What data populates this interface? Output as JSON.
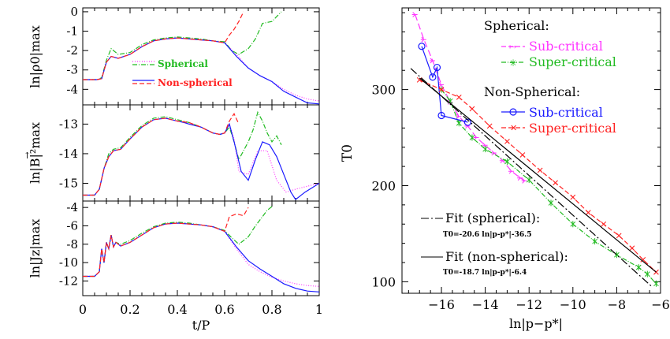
{
  "left_panels": {
    "xlabel": "t/P",
    "x_ticks": [
      "0",
      "0.2",
      "0.4",
      "0.6",
      "0.8",
      "1"
    ],
    "legend": [
      {
        "label": "Spherical",
        "color": "#ff33ff",
        "dash": "dotted",
        "color2": "#22bb22"
      },
      {
        "label": "Non-spherical",
        "color": "#1a1aff",
        "dash": "solid",
        "color2": "#ff2222"
      }
    ]
  },
  "right_panel": {
    "xlabel": "ln|p−p*|",
    "ylabel": "T0",
    "x_ticks": [
      "−16",
      "−14",
      "−12",
      "−10",
      "−8",
      "−6"
    ],
    "y_ticks": [
      "100",
      "200",
      "300"
    ],
    "legend": {
      "group1": "Spherical:",
      "sub1": "Sub-critical",
      "super1": "Super-critical",
      "group2": "Non-Spherical:",
      "sub2": "Sub-critical",
      "super2": "Super-critical",
      "fit1": "Fit (spherical):",
      "fit1_eq": "T0=-20.6  ln|p-p*|-36.5",
      "fit2": "Fit (non-spherical):",
      "fit2_eq": "T0=-18.7  ln|p-p*|-6.4"
    }
  },
  "colors": {
    "magenta": "#ff33ff",
    "green": "#22bb22",
    "blue": "#1a1aff",
    "red": "#ff2222",
    "black": "#000000"
  },
  "chart_data": [
    {
      "type": "line",
      "ylabel": "ln|ρ0|max",
      "xlim": [
        0,
        1
      ],
      "ylim": [
        -4.8,
        0.2
      ],
      "y_ticks": [
        "0",
        "-1",
        "-2",
        "-3",
        "-4"
      ],
      "series": [
        {
          "name": "Spherical",
          "color": "#ff33ff",
          "dash": "1,2",
          "x": [
            0,
            0.06,
            0.08,
            0.1,
            0.12,
            0.15,
            0.2,
            0.25,
            0.3,
            0.35,
            0.4,
            0.45,
            0.5,
            0.55,
            0.6,
            0.65,
            0.7,
            0.75,
            0.8,
            0.85,
            0.9,
            0.95,
            1.0
          ],
          "y": [
            -3.5,
            -3.5,
            -3.45,
            -2.6,
            -2.3,
            -2.4,
            -2.2,
            -1.8,
            -1.5,
            -1.4,
            -1.35,
            -1.4,
            -1.45,
            -1.5,
            -1.6,
            -2.2,
            -2.9,
            -3.3,
            -3.6,
            -4.0,
            -4.3,
            -4.5,
            -4.6
          ]
        },
        {
          "name": "",
          "color": "#22bb22",
          "dash": "6,2,1,2",
          "x": [
            0,
            0.06,
            0.08,
            0.1,
            0.12,
            0.15,
            0.2,
            0.25,
            0.3,
            0.35,
            0.4,
            0.45,
            0.5,
            0.55,
            0.6,
            0.63,
            0.66,
            0.7,
            0.73,
            0.76,
            0.8,
            0.84
          ],
          "y": [
            -3.5,
            -3.5,
            -3.4,
            -2.5,
            -1.9,
            -2.2,
            -2.1,
            -1.7,
            -1.45,
            -1.35,
            -1.3,
            -1.35,
            -1.4,
            -1.5,
            -1.55,
            -2.0,
            -2.2,
            -1.9,
            -1.4,
            -0.6,
            -0.5,
            0.0
          ]
        },
        {
          "name": "Non-spherical",
          "color": "#1a1aff",
          "dash": "",
          "x": [
            0,
            0.06,
            0.08,
            0.1,
            0.12,
            0.15,
            0.2,
            0.25,
            0.3,
            0.35,
            0.4,
            0.45,
            0.5,
            0.55,
            0.6,
            0.65,
            0.7,
            0.75,
            0.8,
            0.85,
            0.9,
            0.95,
            1.0
          ],
          "y": [
            -3.5,
            -3.5,
            -3.45,
            -2.6,
            -2.3,
            -2.4,
            -2.2,
            -1.8,
            -1.5,
            -1.4,
            -1.35,
            -1.4,
            -1.45,
            -1.5,
            -1.6,
            -2.3,
            -2.9,
            -3.3,
            -3.6,
            -4.1,
            -4.4,
            -4.7,
            -4.75
          ]
        },
        {
          "name": "",
          "color": "#ff2222",
          "dash": "6,3",
          "x": [
            0,
            0.06,
            0.08,
            0.1,
            0.12,
            0.15,
            0.2,
            0.25,
            0.3,
            0.35,
            0.4,
            0.45,
            0.5,
            0.55,
            0.6,
            0.62,
            0.64,
            0.66,
            0.68
          ],
          "y": [
            -3.5,
            -3.5,
            -3.45,
            -2.6,
            -2.3,
            -2.4,
            -2.2,
            -1.8,
            -1.5,
            -1.4,
            -1.35,
            -1.4,
            -1.45,
            -1.5,
            -1.6,
            -1.2,
            -0.9,
            -0.5,
            0.0
          ]
        }
      ]
    },
    {
      "type": "line",
      "ylabel": "ln|B|²max",
      "xlim": [
        0,
        1
      ],
      "ylim": [
        -15.6,
        -12.35
      ],
      "y_ticks": [
        "-13",
        "-14",
        "-15"
      ],
      "series": [
        {
          "name": "Spherical",
          "color": "#ff33ff",
          "dash": "1,2",
          "x": [
            0,
            0.05,
            0.07,
            0.09,
            0.11,
            0.13,
            0.16,
            0.2,
            0.25,
            0.3,
            0.35,
            0.4,
            0.43,
            0.45,
            0.5,
            0.55,
            0.58,
            0.6,
            0.62,
            0.64,
            0.66,
            0.7,
            0.74,
            0.78,
            0.82,
            0.86,
            0.9,
            0.95,
            1.0
          ],
          "y": [
            -15.4,
            -15.4,
            -15.2,
            -14.5,
            -14.1,
            -13.9,
            -13.85,
            -13.5,
            -13.1,
            -12.85,
            -12.8,
            -12.9,
            -12.95,
            -13.0,
            -13.1,
            -13.3,
            -13.35,
            -13.3,
            -13.0,
            -13.5,
            -14.6,
            -14.7,
            -13.9,
            -13.9,
            -14.9,
            -15.3,
            -15.2,
            -15.1,
            -15.0
          ]
        },
        {
          "name": "",
          "color": "#22bb22",
          "dash": "6,2,1,2",
          "x": [
            0,
            0.05,
            0.07,
            0.09,
            0.11,
            0.13,
            0.16,
            0.2,
            0.25,
            0.3,
            0.35,
            0.4,
            0.45,
            0.5,
            0.55,
            0.58,
            0.6,
            0.62,
            0.64,
            0.66,
            0.7,
            0.72,
            0.74,
            0.76,
            0.78,
            0.8,
            0.82,
            0.84
          ],
          "y": [
            -15.4,
            -15.4,
            -15.2,
            -14.5,
            -14.0,
            -13.85,
            -13.8,
            -13.45,
            -13.05,
            -12.8,
            -12.75,
            -12.85,
            -12.95,
            -13.1,
            -13.3,
            -13.35,
            -13.3,
            -13.1,
            -13.6,
            -14.2,
            -13.6,
            -13.2,
            -12.6,
            -12.9,
            -13.3,
            -13.6,
            -13.4,
            -13.7
          ]
        },
        {
          "name": "Non-spherical",
          "color": "#1a1aff",
          "dash": "",
          "x": [
            0,
            0.05,
            0.07,
            0.09,
            0.11,
            0.13,
            0.16,
            0.2,
            0.25,
            0.3,
            0.35,
            0.4,
            0.43,
            0.45,
            0.5,
            0.55,
            0.58,
            0.6,
            0.62,
            0.64,
            0.67,
            0.7,
            0.73,
            0.76,
            0.79,
            0.82,
            0.85,
            0.88,
            0.9,
            0.94,
            1.0
          ],
          "y": [
            -15.4,
            -15.4,
            -15.2,
            -14.5,
            -14.1,
            -13.9,
            -13.85,
            -13.5,
            -13.1,
            -12.85,
            -12.8,
            -12.9,
            -12.95,
            -13.0,
            -13.1,
            -13.3,
            -13.35,
            -13.3,
            -13.0,
            -13.6,
            -14.6,
            -14.9,
            -14.2,
            -13.6,
            -13.7,
            -14.1,
            -14.7,
            -15.3,
            -15.55,
            -15.3,
            -15.0
          ]
        },
        {
          "name": "",
          "color": "#ff2222",
          "dash": "6,3",
          "x": [
            0,
            0.05,
            0.07,
            0.09,
            0.11,
            0.13,
            0.16,
            0.2,
            0.25,
            0.3,
            0.35,
            0.4,
            0.45,
            0.5,
            0.55,
            0.58,
            0.6,
            0.62,
            0.64,
            0.66
          ],
          "y": [
            -15.4,
            -15.4,
            -15.2,
            -14.5,
            -14.1,
            -13.9,
            -13.85,
            -13.5,
            -13.1,
            -12.85,
            -12.8,
            -12.9,
            -12.95,
            -13.1,
            -13.3,
            -13.35,
            -13.3,
            -12.9,
            -12.65,
            -13.0
          ]
        }
      ]
    },
    {
      "type": "line",
      "ylabel": "ln|Jz|max",
      "xlim": [
        0,
        1
      ],
      "ylim": [
        -13.6,
        -3.3
      ],
      "y_ticks": [
        "-4",
        "-6",
        "-8",
        "-10",
        "-12"
      ],
      "series": [
        {
          "name": "Spherical",
          "color": "#ff33ff",
          "dash": "1,2",
          "x": [
            0,
            0.05,
            0.07,
            0.08,
            0.09,
            0.1,
            0.11,
            0.12,
            0.13,
            0.14,
            0.16,
            0.2,
            0.25,
            0.3,
            0.35,
            0.4,
            0.45,
            0.5,
            0.55,
            0.6,
            0.65,
            0.7,
            0.75,
            0.8,
            0.85,
            0.9,
            0.95,
            1.0
          ],
          "y": [
            -11.5,
            -11.5,
            -11.0,
            -8.5,
            -10.0,
            -7.8,
            -8.5,
            -7.0,
            -8.3,
            -7.8,
            -8.2,
            -7.8,
            -7.0,
            -6.2,
            -5.8,
            -5.7,
            -5.8,
            -5.9,
            -6.1,
            -6.6,
            -8.5,
            -10.2,
            -11.0,
            -11.6,
            -12.0,
            -12.3,
            -12.5,
            -12.6
          ]
        },
        {
          "name": "",
          "color": "#22bb22",
          "dash": "6,2,1,2",
          "x": [
            0,
            0.05,
            0.07,
            0.08,
            0.09,
            0.1,
            0.11,
            0.12,
            0.13,
            0.14,
            0.16,
            0.2,
            0.25,
            0.3,
            0.35,
            0.4,
            0.45,
            0.5,
            0.55,
            0.6,
            0.63,
            0.66,
            0.7,
            0.73,
            0.76,
            0.78,
            0.8
          ],
          "y": [
            -11.5,
            -11.5,
            -11.0,
            -8.5,
            -10.0,
            -7.8,
            -8.5,
            -7.0,
            -8.3,
            -7.8,
            -8.0,
            -7.6,
            -6.8,
            -6.1,
            -5.7,
            -5.6,
            -5.7,
            -5.9,
            -6.1,
            -6.5,
            -7.3,
            -8.0,
            -7.2,
            -6.0,
            -5.0,
            -4.3,
            -3.9
          ]
        },
        {
          "name": "Non-spherical",
          "color": "#1a1aff",
          "dash": "",
          "x": [
            0,
            0.05,
            0.07,
            0.08,
            0.09,
            0.1,
            0.11,
            0.12,
            0.13,
            0.14,
            0.16,
            0.2,
            0.25,
            0.3,
            0.35,
            0.4,
            0.45,
            0.5,
            0.55,
            0.6,
            0.65,
            0.7,
            0.75,
            0.8,
            0.85,
            0.9,
            0.95,
            1.0
          ],
          "y": [
            -11.5,
            -11.5,
            -11.0,
            -8.5,
            -10.0,
            -7.8,
            -8.5,
            -7.0,
            -8.3,
            -7.8,
            -8.2,
            -7.8,
            -7.0,
            -6.2,
            -5.8,
            -5.7,
            -5.8,
            -5.9,
            -6.1,
            -6.6,
            -8.3,
            -9.8,
            -10.7,
            -11.5,
            -12.3,
            -12.8,
            -13.1,
            -13.2
          ]
        },
        {
          "name": "",
          "color": "#ff2222",
          "dash": "6,3",
          "x": [
            0,
            0.05,
            0.07,
            0.08,
            0.09,
            0.1,
            0.11,
            0.12,
            0.13,
            0.14,
            0.16,
            0.2,
            0.25,
            0.3,
            0.35,
            0.4,
            0.45,
            0.5,
            0.55,
            0.6,
            0.62,
            0.65,
            0.68,
            0.7
          ],
          "y": [
            -11.5,
            -11.5,
            -11.0,
            -8.5,
            -10.0,
            -7.8,
            -8.5,
            -7.0,
            -8.3,
            -7.8,
            -8.2,
            -7.8,
            -7.0,
            -6.2,
            -5.8,
            -5.7,
            -5.8,
            -5.9,
            -6.1,
            -6.6,
            -5.0,
            -4.7,
            -4.9,
            -4.0
          ]
        }
      ]
    },
    {
      "type": "line",
      "xlabel": "ln|p−p*|",
      "ylabel": "T0",
      "xlim": [
        -17.8,
        -6.0
      ],
      "ylim": [
        88,
        385
      ],
      "series": [
        {
          "name": "Sub-critical",
          "group": "Spherical",
          "color": "#ff33ff",
          "dash": "8,4",
          "marker": "arrow",
          "x": [
            -17.2,
            -16.8,
            -16.4,
            -16.0,
            -15.6,
            -15.2,
            -14.8,
            -14.4,
            -14.0,
            -13.6,
            -13.2,
            -12.8,
            -12.4,
            -12.2
          ],
          "y": [
            378,
            352,
            330,
            305,
            287,
            272,
            262,
            250,
            242,
            234,
            226,
            215,
            208,
            205
          ]
        },
        {
          "name": "Super-critical",
          "group": "Spherical",
          "color": "#22bb22",
          "dash": "6,2,1,2",
          "marker": "star",
          "x": [
            -16.0,
            -15.6,
            -15.2,
            -14.6,
            -14.0,
            -13.0,
            -12.0,
            -11.0,
            -10.0,
            -9.0,
            -8.0,
            -7.0,
            -6.6,
            -6.2
          ],
          "y": [
            300,
            288,
            265,
            250,
            238,
            225,
            206,
            182,
            160,
            142,
            128,
            115,
            108,
            98
          ]
        },
        {
          "name": "Sub-critical",
          "group": "Non-Spherical",
          "color": "#1a1aff",
          "dash": "",
          "marker": "circle",
          "x": [
            -16.9,
            -16.4,
            -16.2,
            -16.0,
            -14.8
          ],
          "y": [
            345,
            313,
            323,
            273,
            266
          ]
        },
        {
          "name": "Super-critical",
          "group": "Non-Spherical",
          "color": "#ff2222",
          "dash": "6,3",
          "marker": "x",
          "x": [
            -17.0,
            -16.0,
            -15.2,
            -14.6,
            -13.8,
            -13.0,
            -12.3,
            -11.5,
            -10.8,
            -10.0,
            -9.3,
            -8.6,
            -7.9,
            -7.3,
            -6.8,
            -6.2
          ],
          "y": [
            310,
            300,
            292,
            280,
            262,
            246,
            232,
            216,
            203,
            188,
            172,
            160,
            148,
            135,
            123,
            110
          ]
        },
        {
          "name": "Fit (spherical)",
          "color": "#000000",
          "dash": "10,3,2,3",
          "marker": "",
          "x": [
            -17.4,
            -6.4
          ],
          "y": [
            322,
            95
          ]
        },
        {
          "name": "Fit (non-spherical)",
          "color": "#000000",
          "dash": "",
          "marker": "",
          "x": [
            -17.0,
            -6.2
          ],
          "y": [
            312,
            110
          ]
        }
      ]
    }
  ]
}
